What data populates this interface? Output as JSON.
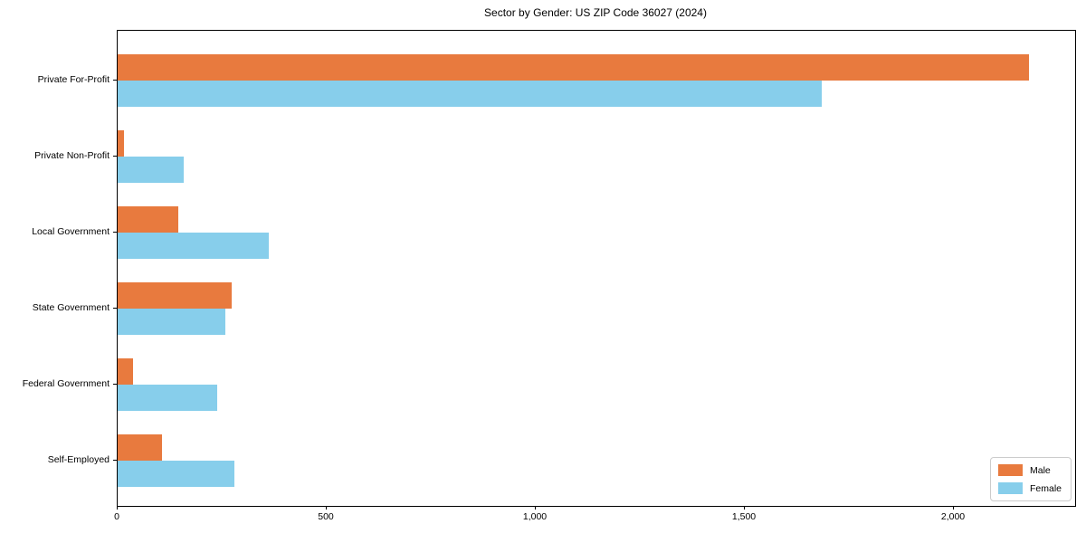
{
  "chart_data": {
    "type": "bar",
    "orientation": "horizontal",
    "title": "Sector by Gender: US ZIP Code 36027 (2024)",
    "categories": [
      "Private For-Profit",
      "Private Non-Profit",
      "Local Government",
      "State Government",
      "Federal Government",
      "Self-Employed"
    ],
    "series": [
      {
        "name": "Male",
        "color": "#e87a3e",
        "values": [
          2180,
          15,
          146,
          272,
          36,
          107
        ]
      },
      {
        "name": "Female",
        "color": "#87ceeb",
        "values": [
          1684,
          158,
          362,
          257,
          239,
          279
        ]
      }
    ],
    "xlim": [
      0,
      2290
    ],
    "xticks": {
      "values": [
        0,
        500,
        1000,
        1500,
        2000
      ],
      "labels": [
        "0",
        "500",
        "1,000",
        "1,500",
        "2,000"
      ]
    },
    "xlabel": "",
    "ylabel": "",
    "grid": false,
    "legend_position": "lower right",
    "background_color": "#ffffff",
    "spine_color": "#000000"
  }
}
